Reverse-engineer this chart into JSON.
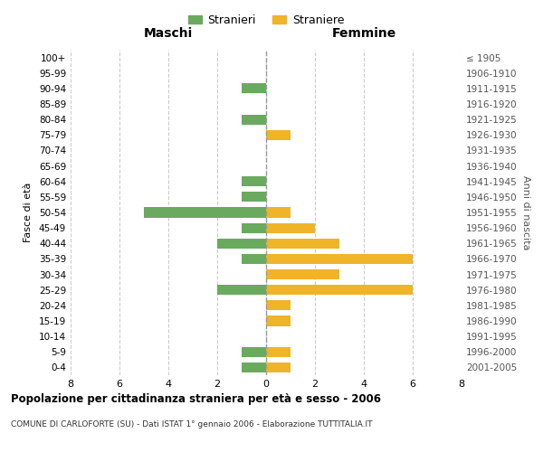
{
  "age_groups": [
    "100+",
    "95-99",
    "90-94",
    "85-89",
    "80-84",
    "75-79",
    "70-74",
    "65-69",
    "60-64",
    "55-59",
    "50-54",
    "45-49",
    "40-44",
    "35-39",
    "30-34",
    "25-29",
    "20-24",
    "15-19",
    "10-14",
    "5-9",
    "0-4"
  ],
  "birth_years": [
    "≤ 1905",
    "1906-1910",
    "1911-1915",
    "1916-1920",
    "1921-1925",
    "1926-1930",
    "1931-1935",
    "1936-1940",
    "1941-1945",
    "1946-1950",
    "1951-1955",
    "1956-1960",
    "1961-1965",
    "1966-1970",
    "1971-1975",
    "1976-1980",
    "1981-1985",
    "1986-1990",
    "1991-1995",
    "1996-2000",
    "2001-2005"
  ],
  "stranieri": [
    0,
    0,
    1,
    0,
    1,
    0,
    0,
    0,
    1,
    1,
    5,
    1,
    2,
    1,
    0,
    2,
    0,
    0,
    0,
    1,
    1
  ],
  "straniere": [
    0,
    0,
    0,
    0,
    0,
    1,
    0,
    0,
    0,
    0,
    1,
    2,
    3,
    6,
    3,
    6,
    1,
    1,
    0,
    1,
    1
  ],
  "color_stranieri": "#6aaa5f",
  "color_straniere": "#f0b429",
  "xlim": 8,
  "xlabel_maschi": "Maschi",
  "xlabel_femmine": "Femmine",
  "ylabel_left": "Fasce di età",
  "ylabel_right": "Anni di nascita",
  "title": "Popolazione per cittadinanza straniera per età e sesso - 2006",
  "subtitle": "COMUNE DI CARLOFORTE (SU) - Dati ISTAT 1° gennaio 2006 - Elaborazione TUTTITALIA.IT",
  "legend_stranieri": "Stranieri",
  "legend_straniere": "Straniere",
  "bg_color": "#ffffff",
  "grid_color": "#cccccc",
  "grid_style": "--"
}
